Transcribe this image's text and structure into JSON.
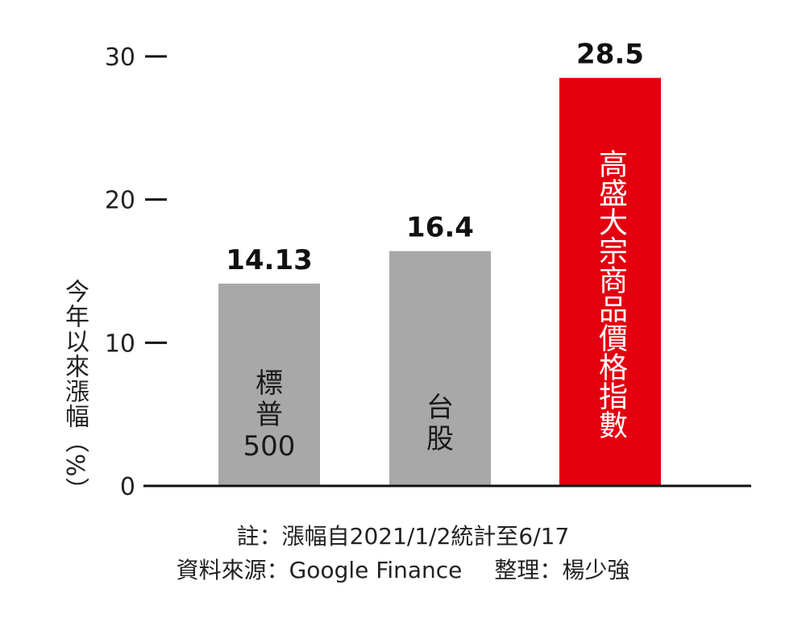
{
  "chart_data": {
    "type": "bar",
    "categories": [
      "標普500",
      "台股",
      "高盛大宗商品價格指數"
    ],
    "category_display": [
      {
        "lines": [
          "標",
          "普",
          "500"
        ]
      },
      {
        "lines": [
          "台",
          "股"
        ]
      },
      {
        "lines": [
          "高盛大宗商品價格指數"
        ]
      }
    ],
    "values": [
      14.13,
      16.4,
      28.5
    ],
    "value_labels": [
      "14.13",
      "16.4",
      "28.5"
    ],
    "bar_colors": [
      "#a8a8a8",
      "#a8a8a8",
      "#e3000f"
    ],
    "bar_label_colors": [
      "#1a1a1a",
      "#1a1a1a",
      "#ffffff"
    ],
    "yticks": [
      0,
      10,
      20,
      30
    ],
    "ytick_labels": [
      "0",
      "10",
      "20",
      "30"
    ],
    "ylim": [
      0,
      30
    ],
    "ylabel": "今年以來漲幅（%）",
    "xlabel": "",
    "title": "",
    "grid": false
  },
  "notes": {
    "line1": "註：漲幅自2021/1/2統計至6/17",
    "source": "資料來源：Google Finance",
    "editor": "整理：楊少強"
  }
}
